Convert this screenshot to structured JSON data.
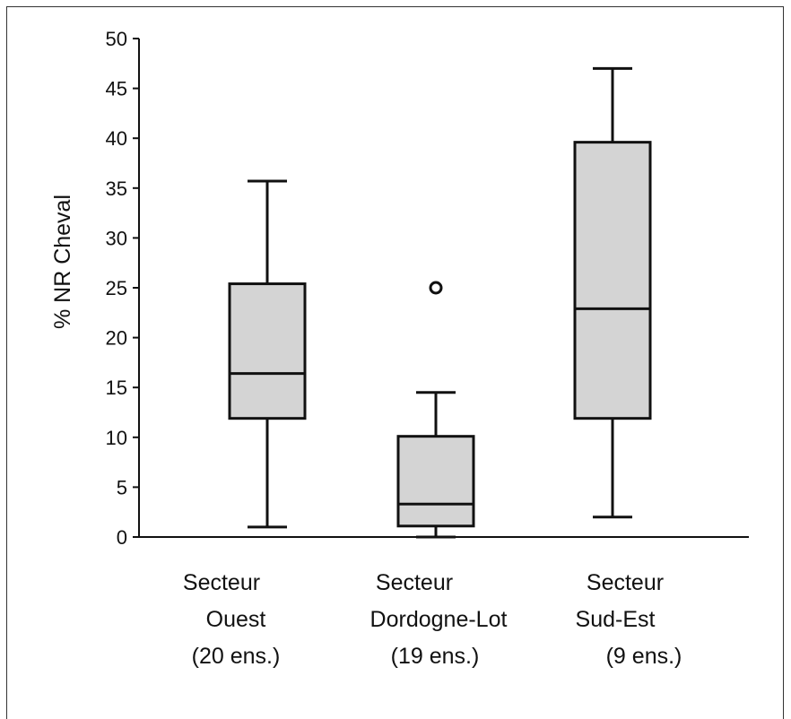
{
  "chart_data": {
    "type": "boxplot",
    "title": "",
    "xlabel": "",
    "ylabel": "% NR Cheval",
    "ylim": [
      0,
      50
    ],
    "yticks": [
      0,
      5,
      10,
      15,
      20,
      25,
      30,
      35,
      40,
      45,
      50
    ],
    "grid": false,
    "box_color": "#d4d4d4",
    "categories": [
      {
        "lines": [
          "Secteur",
          "Ouest",
          "(20 ens.)"
        ],
        "whisker_low": 1.0,
        "q1": 11.9,
        "median": 16.4,
        "q3": 25.4,
        "whisker_high": 35.7,
        "outliers": []
      },
      {
        "lines": [
          "Secteur",
          "Dordogne-Lot",
          "(19 ens.)"
        ],
        "whisker_low": 0.0,
        "q1": 1.1,
        "median": 3.3,
        "q3": 10.1,
        "whisker_high": 14.5,
        "outliers": [
          25.0
        ]
      },
      {
        "lines": [
          "Secteur",
          "Sud-Est",
          "(9 ens.)"
        ],
        "whisker_low": 2.0,
        "q1": 11.9,
        "median": 22.9,
        "q3": 39.6,
        "whisker_high": 47.0,
        "outliers": []
      }
    ]
  }
}
